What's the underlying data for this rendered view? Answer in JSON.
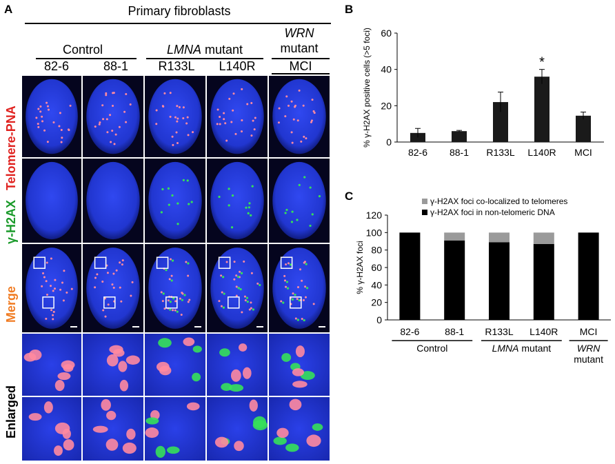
{
  "panel_a": {
    "letter": "A",
    "title": "Primary  fibroblasts",
    "groups": {
      "control": "Control",
      "lmna_italic": "LMNA",
      "lmna_rest": " mutant",
      "wrn_italic": "WRN",
      "wrn_rest": "mutant"
    },
    "samples": [
      "82-6",
      "88-1",
      "R133L",
      "L140R",
      "MCI"
    ],
    "rows": {
      "telomere": "Telomere-PNA",
      "h2ax": "γ-H2AX",
      "merge": "Merge",
      "enlarged": "Enlarged"
    },
    "colors": {
      "telomere_label": "#e0221f",
      "h2ax_label": "#1a9a2a",
      "merge_label": "#f07b22",
      "nucleus": "#2a3fe0",
      "telomere_dot": "#ff8aa0",
      "h2ax_dot": "#36e05a"
    }
  },
  "panel_b": {
    "letter": "B",
    "chart_data": {
      "type": "bar",
      "categories": [
        "82-6",
        "88-1",
        "R133L",
        "L140R",
        "MCI"
      ],
      "values": [
        5,
        6,
        22,
        36,
        14.5
      ],
      "errors": [
        2.5,
        0.4,
        5.5,
        4,
        2
      ],
      "ylabel": "% γ-H2AX positive cells (>5 foci)",
      "ylim": [
        0,
        60
      ],
      "yticks": [
        0,
        20,
        40,
        60
      ],
      "annotations": [
        {
          "category": "L140R",
          "text": "*"
        }
      ],
      "bar_color": "#1a1a1a"
    }
  },
  "panel_c": {
    "letter": "C",
    "chart_data": {
      "type": "bar",
      "stacked": true,
      "categories": [
        "82-6",
        "88-1",
        "R133L",
        "L140R",
        "MCI"
      ],
      "series": [
        {
          "name": "γ-H2AX foci in non-telomeric DNA",
          "values": [
            100,
            91,
            89,
            87,
            100
          ],
          "color": "#000000"
        },
        {
          "name": "γ-H2AX foci co-localized to telomeres",
          "values": [
            0,
            9,
            11,
            13,
            0
          ],
          "color": "#9a9a9a"
        }
      ],
      "ylabel": "% γ-H2AX foci",
      "ylim": [
        0,
        120
      ],
      "yticks": [
        0,
        20,
        40,
        60,
        80,
        100,
        120
      ],
      "legend_position": "top",
      "group_labels": {
        "control": "Control",
        "lmna_italic": "LMNA",
        "lmna_rest": " mutant",
        "wrn_italic": "WRN",
        "wrn_rest": "mutant"
      }
    }
  }
}
